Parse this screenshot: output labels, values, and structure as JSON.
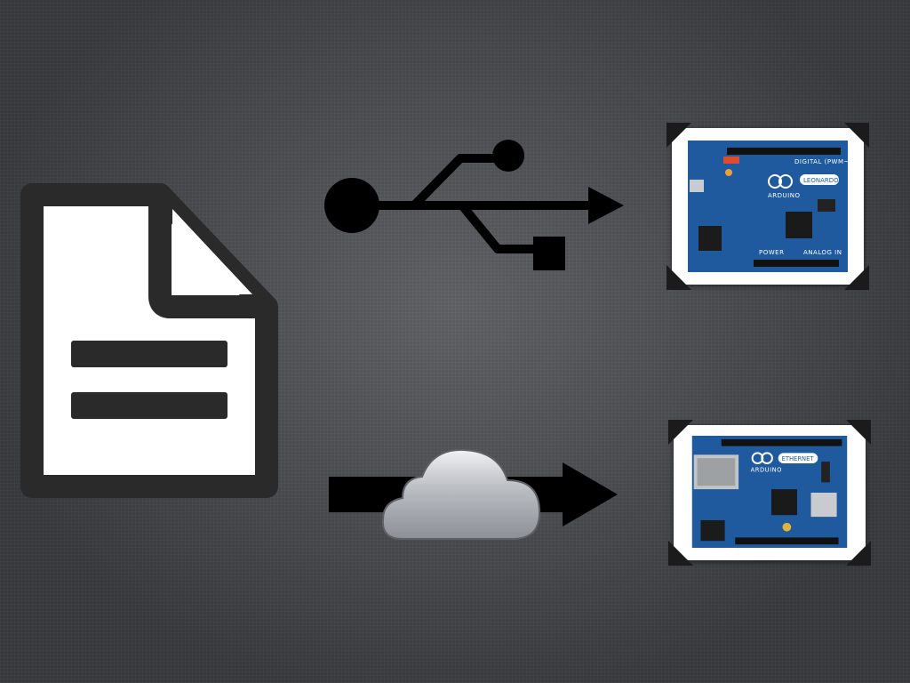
{
  "source": {
    "icon": "document-icon"
  },
  "connections": [
    {
      "icon": "usb-icon",
      "arrow": "right"
    },
    {
      "icon": "cloud-icon",
      "arrow": "right"
    }
  ],
  "boards": [
    {
      "icon": "arduino-leonardo-board",
      "logo_text": "ARDUINO",
      "model_text": "LEONARDO",
      "header_text": "DIGITAL (PWM~)",
      "power_text": "POWER",
      "analog_text": "ANALOG IN"
    },
    {
      "icon": "arduino-ethernet-board",
      "logo_text": "ARDUINO",
      "model_text": "ETHERNET"
    }
  ],
  "colors": {
    "background": "#4a4c50",
    "icon_fill": "#000000",
    "document_outline": "#2a2a2b",
    "board_blue": "#1f5a9e",
    "frame": "#ffffff"
  }
}
